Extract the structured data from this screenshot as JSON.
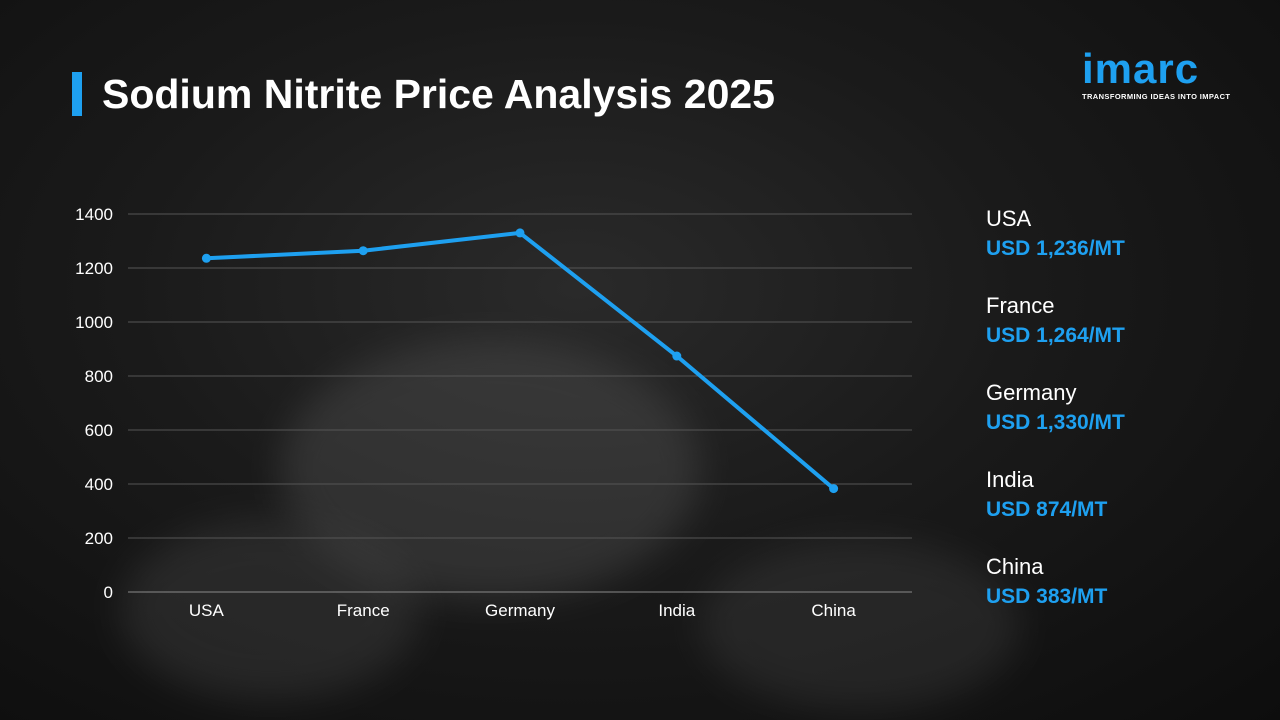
{
  "title": "Sodium Nitrite Price Analysis 2025",
  "logo": {
    "wordmark": "imarc",
    "tagline": "TRANSFORMING IDEAS INTO IMPACT"
  },
  "colors": {
    "accent": "#1ea0f0",
    "text": "#ffffff",
    "grid": "#555555"
  },
  "chart_data": {
    "type": "line",
    "categories": [
      "USA",
      "France",
      "Germany",
      "India",
      "China"
    ],
    "series": [
      {
        "values": [
          1236,
          1264,
          1330,
          874,
          383
        ]
      }
    ],
    "ylim": [
      0,
      1400
    ],
    "yticks": [
      "0",
      "200",
      "400",
      "600",
      "800",
      "1000",
      "1200",
      "1400"
    ],
    "grid": true,
    "legend": "none"
  },
  "side_panel": [
    {
      "country": "USA",
      "value": "USD 1,236/MT"
    },
    {
      "country": "France",
      "value": "USD 1,264/MT"
    },
    {
      "country": "Germany",
      "value": "USD 1,330/MT"
    },
    {
      "country": "India",
      "value": "USD 874/MT"
    },
    {
      "country": "China",
      "value": "USD 383/MT"
    }
  ]
}
